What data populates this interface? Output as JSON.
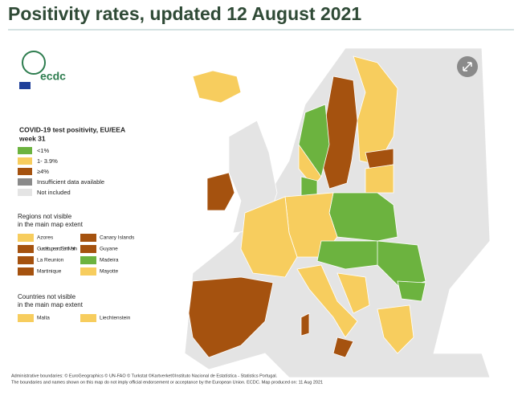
{
  "header": {
    "title": "Positivity rates, updated 12 August 2021"
  },
  "logo": {
    "text": "ecdc"
  },
  "legend": {
    "title": [
      "COVID-19 test positivity, EU/EEA",
      "week 31"
    ],
    "items": [
      {
        "label": "<1%",
        "color": "#6cb33f"
      },
      {
        "label": "1- 3.9%",
        "color": "#f7cd5e"
      },
      {
        "label": "≥4%",
        "color": "#a5520f"
      },
      {
        "label": "Insufficient data available",
        "color": "#8a8a8a"
      },
      {
        "label": "Not included",
        "color": "#e4e4e4"
      }
    ]
  },
  "regions": {
    "title": [
      "Regions not visible",
      "in the main map extent"
    ],
    "items": [
      {
        "label": "Azores",
        "color": "#f7cd5e"
      },
      {
        "label": "Canary Islands",
        "color": "#a5520f"
      },
      {
        "label": "Guadeloupe and Saint Martin",
        "color": "#a5520f"
      },
      {
        "label": "Guyane",
        "color": "#a5520f"
      },
      {
        "label": "La Reunion",
        "color": "#a5520f"
      },
      {
        "label": "Madeira",
        "color": "#6cb33f"
      },
      {
        "label": "Martinique",
        "color": "#a5520f"
      },
      {
        "label": "Mayotte",
        "color": "#f7cd5e"
      }
    ]
  },
  "countries": {
    "title": [
      "Countries not visible",
      "in the main map extent"
    ],
    "items": [
      {
        "label": "Malta",
        "color": "#f7cd5e"
      },
      {
        "label": "Liechtenstein",
        "color": "#f7cd5e"
      }
    ]
  },
  "footer": [
    "Administrative boundaries: © EuroGeographics © UN-FAO © Turkstat ©Kartverket©Instituto Nacional de Estatística - Statistics Portugal.",
    "The boundaries and names shown on this map do not imply official endorsement or acceptance by the European Union. ECDC. Map produced on: 11 Aug 2021"
  ]
}
